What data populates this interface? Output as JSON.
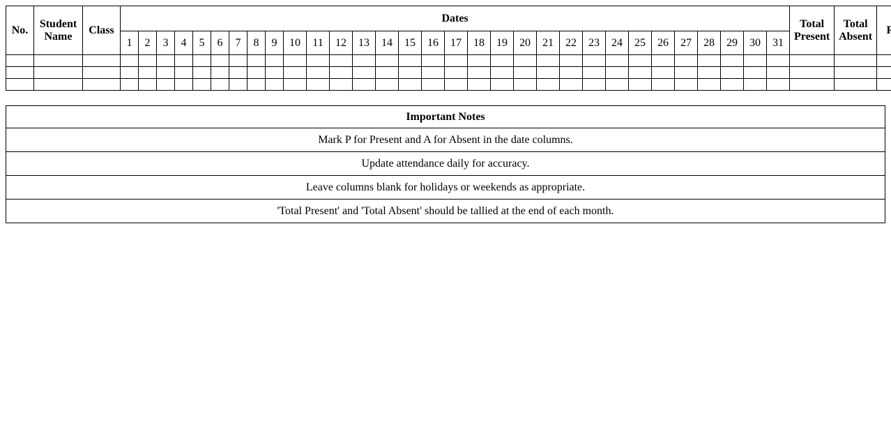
{
  "attendance_table": {
    "headers": {
      "no": "No.",
      "student_name": "Student Name",
      "class": "Class",
      "dates": "Dates",
      "total_present": "Total Present",
      "total_absent": "Total Absent",
      "remarks": "Remarks"
    },
    "date_columns": [
      "1",
      "2",
      "3",
      "4",
      "5",
      "6",
      "7",
      "8",
      "9",
      "10",
      "11",
      "12",
      "13",
      "14",
      "15",
      "16",
      "17",
      "18",
      "19",
      "20",
      "21",
      "22",
      "23",
      "24",
      "25",
      "26",
      "27",
      "28",
      "29",
      "30",
      "31"
    ],
    "empty_row_count": 3
  },
  "notes_table": {
    "title": "Important Notes",
    "notes": [
      "Mark P for Present and A for Absent in the date columns.",
      "Update attendance daily for accuracy.",
      "Leave columns blank for holidays or weekends as appropriate.",
      "'Total Present' and 'Total Absent' should be tallied at the end of each month."
    ]
  },
  "colors": {
    "border": "#000000",
    "text": "#000000",
    "background": "#ffffff"
  }
}
